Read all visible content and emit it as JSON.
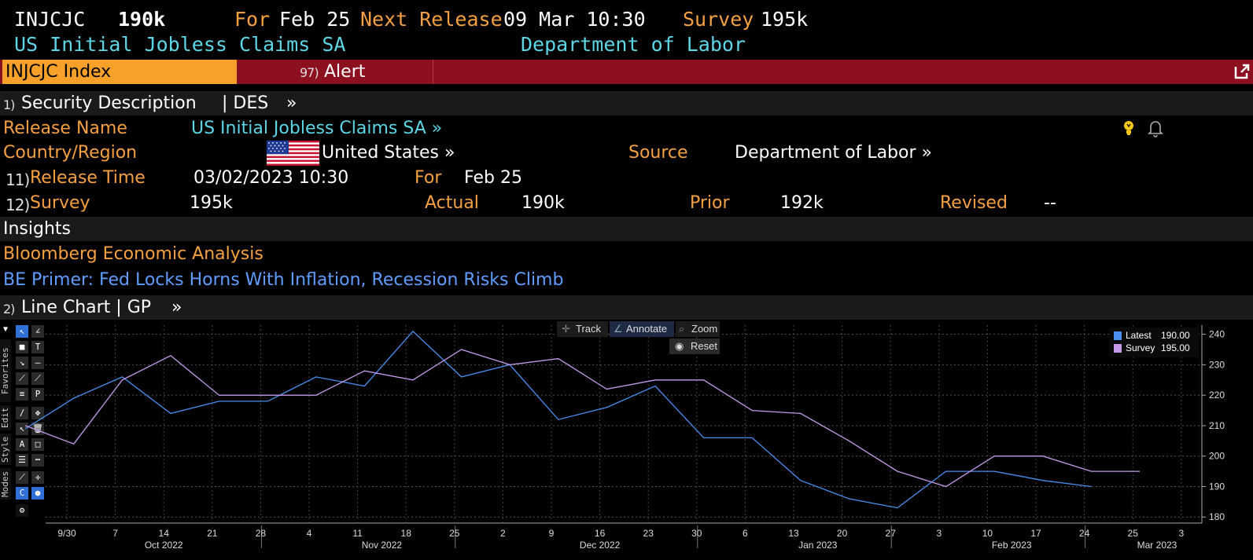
{
  "header": {
    "ticker": "INJCJC",
    "value": "190k",
    "for_label": "For",
    "for_value": "Feb 25",
    "next_release_label": "Next Release",
    "next_release_value": "09 Mar 10:30",
    "survey_label": "Survey",
    "survey_value": "195k",
    "title": "US Initial Jobless Claims SA",
    "source": "Department of Labor"
  },
  "tabs": {
    "index": "INJCJC Index",
    "alert_num": "97)",
    "alert": "Alert"
  },
  "des": {
    "num": "1)",
    "title": "Security Description",
    "code": "| DES",
    "arrow": "»",
    "release_name_label": "Release Name",
    "release_name_value": "US Initial Jobless Claims SA »",
    "country_label": "Country/Region",
    "country_value": "United States »",
    "source_label": "Source",
    "source_value": "Department of Labor »",
    "release_time_num": "11)",
    "release_time_label": "Release Time",
    "release_time_value": "03/02/2023 10:30",
    "for_label": "For",
    "for_value": "Feb 25",
    "survey_num": "12)",
    "survey_label": "Survey",
    "survey_value": "195k",
    "actual_label": "Actual",
    "actual_value": "190k",
    "prior_label": "Prior",
    "prior_value": "192k",
    "revised_label": "Revised",
    "revised_value": "--"
  },
  "insights": {
    "title": "Insights",
    "source": "Bloomberg Economic Analysis",
    "headline": "BE Primer: Fed Locks Horns With Inflation, Recession Risks Climb"
  },
  "chart_section": {
    "num": "2)",
    "title": "Line Chart | GP",
    "arrow": "»"
  },
  "chart_toolbar": {
    "track": "Track",
    "annotate": "Annotate",
    "zoom": "Zoom",
    "reset": "Reset"
  },
  "side_tabs": [
    "Favorites",
    "Edit",
    "Style",
    "Modes"
  ],
  "colors": {
    "latest": "#4a8ff0",
    "survey": "#c39ae8",
    "orange": "#f5a142",
    "cyan": "#5ed6e6",
    "tab_orange": "#f7a12b",
    "tab_red": "#8c1020"
  },
  "chart_data": {
    "type": "line",
    "x_ticks": [
      "9/30",
      "7",
      "14",
      "21",
      "28",
      "4",
      "11",
      "18",
      "25",
      "2",
      "9",
      "16",
      "23",
      "30",
      "6",
      "13",
      "20",
      "27",
      "3",
      "10",
      "17",
      "24",
      "25",
      "3"
    ],
    "month_labels": [
      "Oct 2022",
      "Nov 2022",
      "Dec 2022",
      "Jan 2023",
      "Feb 2023",
      "Mar 2023"
    ],
    "ylim": [
      178,
      243
    ],
    "y_ticks": [
      180,
      190,
      200,
      210,
      220,
      230,
      240
    ],
    "series": [
      {
        "name": "Latest",
        "legend_value": "190.00",
        "x": [
          "2022-09-24",
          "2022-10-01",
          "2022-10-08",
          "2022-10-15",
          "2022-10-22",
          "2022-10-29",
          "2022-11-05",
          "2022-11-12",
          "2022-11-19",
          "2022-11-26",
          "2022-12-03",
          "2022-12-10",
          "2022-12-17",
          "2022-12-24",
          "2022-12-31",
          "2023-01-07",
          "2023-01-14",
          "2023-01-21",
          "2023-01-28",
          "2023-02-04",
          "2023-02-11",
          "2023-02-18",
          "2023-02-25"
        ],
        "values": [
          209,
          219,
          226,
          214,
          218,
          218,
          226,
          223,
          241,
          226,
          230,
          212,
          216,
          223,
          206,
          206,
          192,
          186,
          183,
          195,
          195,
          192,
          190
        ]
      },
      {
        "name": "Survey",
        "legend_value": "195.00",
        "x": [
          "2022-09-24",
          "2022-10-01",
          "2022-10-08",
          "2022-10-15",
          "2022-10-22",
          "2022-10-29",
          "2022-11-05",
          "2022-11-12",
          "2022-11-19",
          "2022-11-26",
          "2022-12-03",
          "2022-12-10",
          "2022-12-17",
          "2022-12-24",
          "2022-12-31",
          "2023-01-07",
          "2023-01-14",
          "2023-01-21",
          "2023-01-28",
          "2023-02-04",
          "2023-02-11",
          "2023-02-18",
          "2023-02-25",
          "2023-03-04"
        ],
        "values": [
          210,
          204,
          225,
          233,
          220,
          220,
          220,
          228,
          225,
          235,
          230,
          232,
          222,
          225,
          225,
          215,
          214,
          205,
          195,
          190,
          200,
          200,
          195,
          195
        ]
      }
    ]
  }
}
